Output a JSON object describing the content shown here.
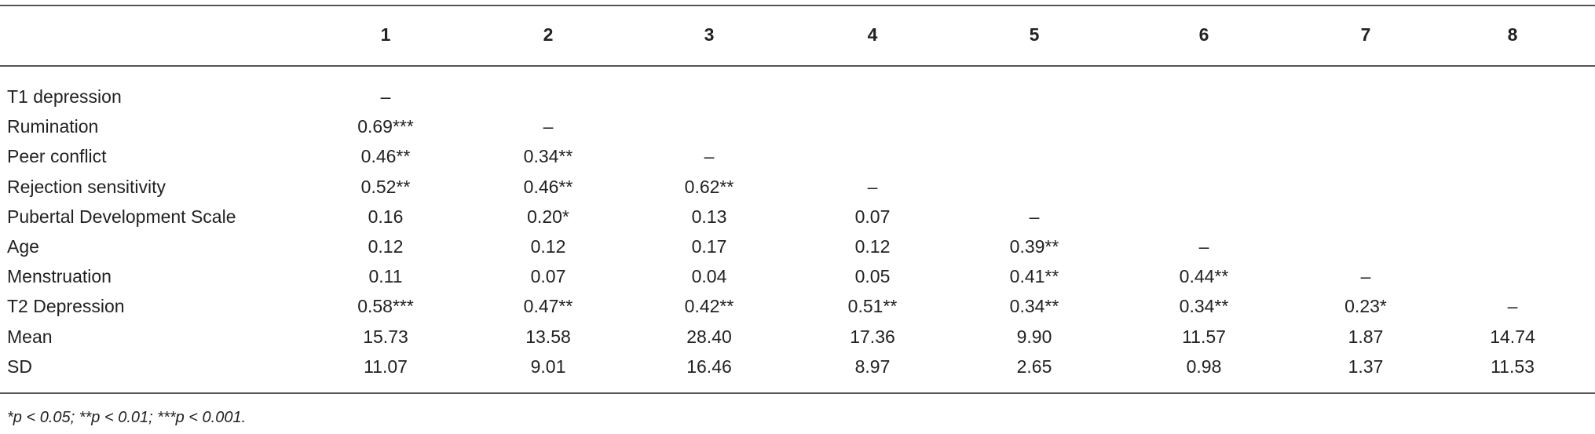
{
  "table": {
    "columns": [
      "1",
      "2",
      "3",
      "4",
      "5",
      "6",
      "7",
      "8"
    ],
    "rows": [
      {
        "label": "T1 depression",
        "cells": [
          "–",
          null,
          null,
          null,
          null,
          null,
          null,
          null
        ]
      },
      {
        "label": "Rumination",
        "cells": [
          "0.69***",
          "–",
          null,
          null,
          null,
          null,
          null,
          null
        ]
      },
      {
        "label": "Peer conflict",
        "cells": [
          "0.46**",
          "0.34**",
          "–",
          null,
          null,
          null,
          null,
          null
        ]
      },
      {
        "label": "Rejection sensitivity",
        "cells": [
          "0.52**",
          "0.46**",
          "0.62**",
          "–",
          null,
          null,
          null,
          null
        ]
      },
      {
        "label": "Pubertal Development Scale",
        "cells": [
          "0.16",
          "0.20*",
          "0.13",
          "0.07",
          "–",
          null,
          null,
          null
        ]
      },
      {
        "label": "Age",
        "cells": [
          "0.12",
          "0.12",
          "0.17",
          "0.12",
          "0.39**",
          "–",
          null,
          null
        ]
      },
      {
        "label": "Menstruation",
        "cells": [
          "0.11",
          "0.07",
          "0.04",
          "0.05",
          "0.41**",
          "0.44**",
          "–",
          null
        ]
      },
      {
        "label": "T2 Depression",
        "cells": [
          "0.58***",
          "0.47**",
          "0.42**",
          "0.51**",
          "0.34**",
          "0.34**",
          "0.23*",
          "–"
        ]
      },
      {
        "label": "Mean",
        "cells": [
          "15.73",
          "13.58",
          "28.40",
          "17.36",
          "9.90",
          "11.57",
          "1.87",
          "14.74"
        ]
      },
      {
        "label": "SD",
        "cells": [
          "11.07",
          "9.01",
          "16.46",
          "8.97",
          "2.65",
          "0.98",
          "1.37",
          "11.53"
        ]
      }
    ],
    "footnote": "*p < 0.05; **p < 0.01; ***p < 0.001."
  }
}
